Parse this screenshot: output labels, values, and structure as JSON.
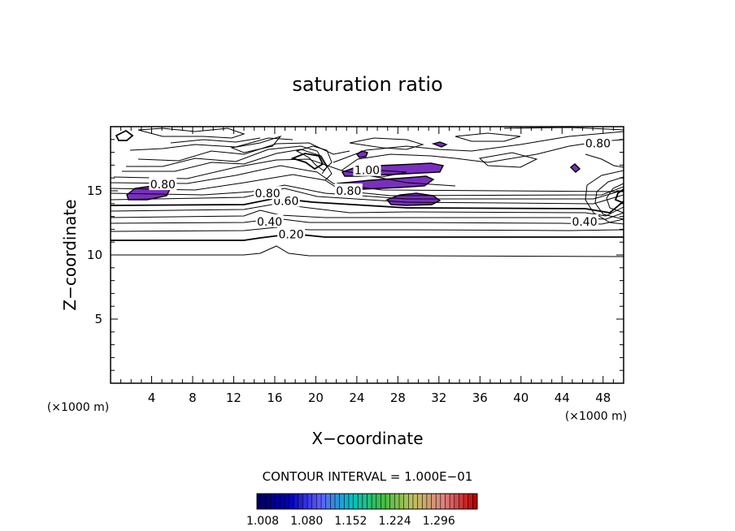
{
  "chart_data": {
    "type": "contour",
    "title": "saturation ratio",
    "xlabel": "X−coordinate",
    "ylabel": "Z−coordinate",
    "x_unit_left": "(×1000 m)",
    "x_unit_right": "(×1000 m)",
    "xlim": [
      0,
      50
    ],
    "ylim": [
      0,
      20
    ],
    "x_ticks": [
      {
        "value": 4,
        "label": "4"
      },
      {
        "value": 8,
        "label": "8"
      },
      {
        "value": 12,
        "label": "12"
      },
      {
        "value": 16,
        "label": "16"
      },
      {
        "value": 20,
        "label": "20"
      },
      {
        "value": 24,
        "label": "24"
      },
      {
        "value": 28,
        "label": "28"
      },
      {
        "value": 32,
        "label": "32"
      },
      {
        "value": 36,
        "label": "36"
      },
      {
        "value": 40,
        "label": "40"
      },
      {
        "value": 44,
        "label": "44"
      },
      {
        "value": 48,
        "label": "48"
      }
    ],
    "y_ticks": [
      {
        "value": 5,
        "label": "5"
      },
      {
        "value": 10,
        "label": "10"
      },
      {
        "value": 15,
        "label": "15"
      }
    ],
    "contour_interval_text": "CONTOUR INTERVAL = 1.000E−01",
    "contour_labels": [
      {
        "text": "0.20",
        "x": 17.6,
        "z": 11.6
      },
      {
        "text": "0.40",
        "x": 15.5,
        "z": 12.6
      },
      {
        "text": "0.40",
        "x": 46.2,
        "z": 12.6
      },
      {
        "text": "0.60",
        "x": 17.1,
        "z": 14.2
      },
      {
        "text": "0.80",
        "x": 15.3,
        "z": 14.8
      },
      {
        "text": "0.80",
        "x": 5.1,
        "z": 15.5
      },
      {
        "text": "0.80",
        "x": 23.2,
        "z": 15.0
      },
      {
        "text": "0.80",
        "x": 47.5,
        "z": 18.7
      },
      {
        "text": "1.00",
        "x": 25.0,
        "z": 16.6
      }
    ],
    "supersaturated_regions_value": ">1.0",
    "colorbar": {
      "labels": [
        "1.008",
        "1.080",
        "1.152",
        "1.224",
        "1.296"
      ],
      "colors": [
        "#000060",
        "#0000c0",
        "#6060ff",
        "#00c0c0",
        "#40c040",
        "#c0c060",
        "#e08080",
        "#c00000"
      ]
    },
    "grid": false,
    "colors": {
      "line": "#000000",
      "fill_region": "#7a2fbf",
      "background": "#ffffff"
    }
  }
}
